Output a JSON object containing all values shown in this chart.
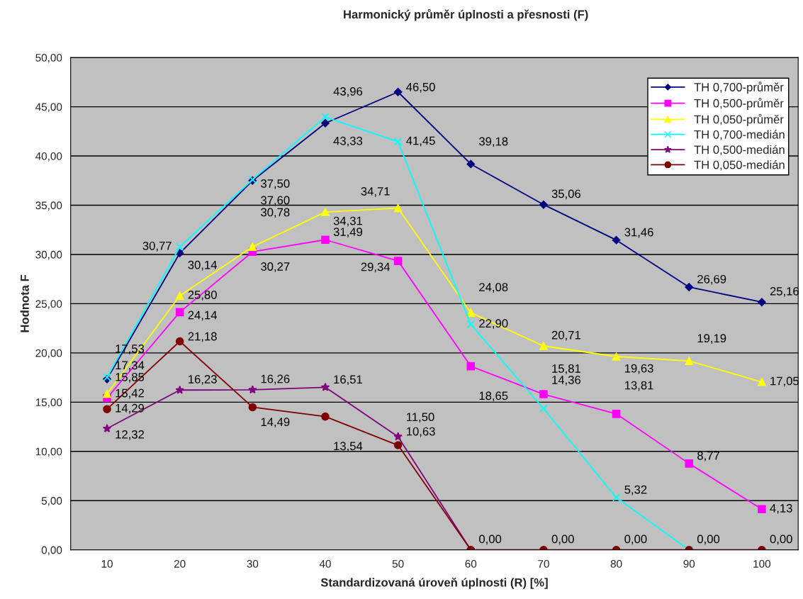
{
  "chart_data": {
    "type": "line",
    "title": "Harmonický průměr úplnosti a přesnosti (F)",
    "xlabel": "Standardizovaná úroveň úplnosti (R) [%]",
    "ylabel": "Hodnota F",
    "categories": [
      "10",
      "20",
      "30",
      "40",
      "50",
      "60",
      "70",
      "80",
      "90",
      "100"
    ],
    "ylim": [
      0,
      50
    ],
    "yticks": [
      {
        "value": 0,
        "label": "0,00"
      },
      {
        "value": 5,
        "label": "5,00"
      },
      {
        "value": 10,
        "label": "10,00"
      },
      {
        "value": 15,
        "label": "15,00"
      },
      {
        "value": 20,
        "label": "20,00"
      },
      {
        "value": 25,
        "label": "25,00"
      },
      {
        "value": 30,
        "label": "30,00"
      },
      {
        "value": 35,
        "label": "35,00"
      },
      {
        "value": 40,
        "label": "40,00"
      },
      {
        "value": 45,
        "label": "45,00"
      },
      {
        "value": 50,
        "label": "50,00"
      }
    ],
    "grid": "y",
    "legend": "top right",
    "series": [
      {
        "name": "TH 0,700-průměr",
        "color": "#000080",
        "marker": "diamond",
        "values": [
          17.34,
          30.14,
          37.5,
          43.33,
          46.5,
          39.18,
          35.06,
          31.46,
          26.69,
          25.16
        ],
        "value_labels": [
          "17,34",
          "30,14",
          "37,50",
          "43,33",
          "46,50",
          "39,18",
          "35,06",
          "31,46",
          "26,69",
          "25,16"
        ]
      },
      {
        "name": "TH 0,500-průměr",
        "color": "#ff00ff",
        "marker": "square",
        "values": [
          15.42,
          24.14,
          30.27,
          31.49,
          29.34,
          18.65,
          15.81,
          13.81,
          8.77,
          4.13
        ],
        "value_labels": [
          "15,42",
          "24,14",
          "30,27",
          "31,49",
          "29,34",
          "18,65",
          "15,81",
          "13,81",
          "8,77",
          "4,13"
        ]
      },
      {
        "name": "TH 0,050-průměr",
        "color": "#ffff00",
        "marker": "triangle",
        "values": [
          15.85,
          25.8,
          30.78,
          34.31,
          34.71,
          24.08,
          20.71,
          19.63,
          19.19,
          17.05
        ],
        "value_labels": [
          "15,85",
          "25,80",
          "30,78",
          "34,31",
          "34,71",
          "24,08",
          "20,71",
          "19,63",
          "19,19",
          "17,05"
        ]
      },
      {
        "name": "TH 0,700-medián",
        "color": "#00ffff",
        "marker": "cross",
        "values": [
          17.53,
          30.77,
          37.6,
          43.96,
          41.45,
          22.9,
          14.36,
          5.32,
          0.0,
          null
        ],
        "value_labels": [
          "17,53",
          "30,77",
          "37,60",
          "43,96",
          "41,45",
          "22,90",
          "14,36",
          "5,32",
          null,
          null
        ]
      },
      {
        "name": "TH 0,500-medián",
        "color": "#800080",
        "marker": "star",
        "values": [
          12.32,
          16.23,
          16.26,
          16.51,
          11.5,
          0.0,
          null,
          null,
          null,
          null
        ],
        "value_labels": [
          "12,32",
          "16,23",
          "16,26",
          "16,51",
          "11,50",
          null,
          null,
          null,
          null,
          null
        ]
      },
      {
        "name": "TH 0,050-medián",
        "color": "#800000",
        "marker": "circle",
        "values": [
          14.29,
          21.18,
          14.49,
          13.54,
          10.63,
          0.0,
          0.0,
          0.0,
          0.0,
          0.0
        ],
        "value_labels": [
          "14,29",
          "21,18",
          "14,49",
          "13,54",
          "10,63",
          "0,00",
          "0,00",
          "0,00",
          "0,00",
          "0,00"
        ]
      }
    ]
  }
}
